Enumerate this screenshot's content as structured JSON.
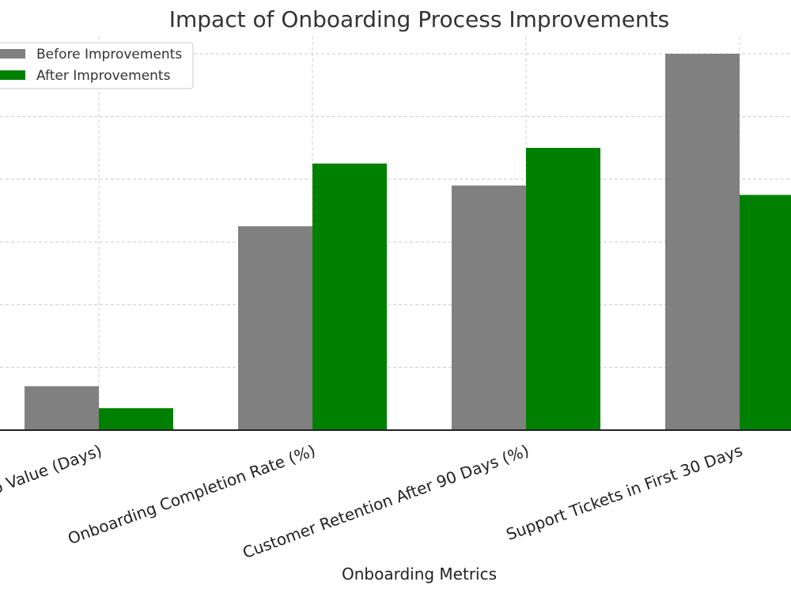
{
  "chart_data": {
    "type": "bar",
    "title": "Impact of Onboarding Process Improvements",
    "xlabel": "Onboarding Metrics",
    "ylabel": "",
    "categories": [
      "Time to Value (Days)",
      "Onboarding Completion Rate (%)",
      "Customer Retention After 90 Days (%)",
      "Support Tickets in First 30 Days"
    ],
    "series": [
      {
        "name": "Before Improvements",
        "color": "#808080",
        "values": [
          14,
          65,
          78,
          120
        ]
      },
      {
        "name": "After Improvements",
        "color": "#008000",
        "values": [
          7,
          85,
          90,
          75
        ]
      }
    ],
    "ylim": [
      0,
      125
    ],
    "grid": true,
    "legend_position": "top-left"
  }
}
